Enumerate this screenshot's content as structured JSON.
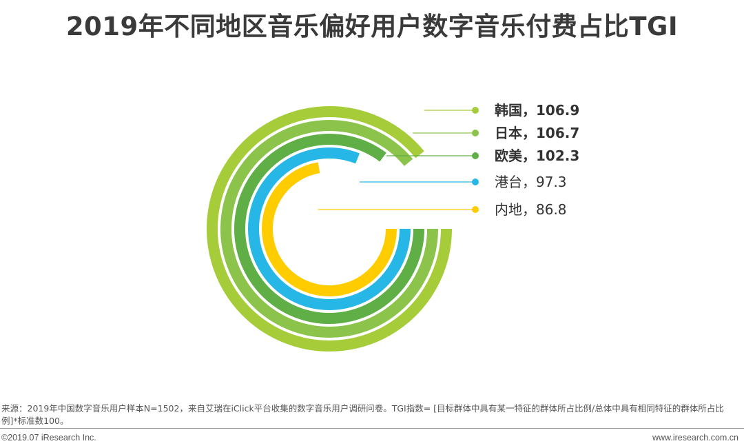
{
  "chart_data": {
    "type": "radial-bar",
    "title": "2019年不同地区音乐偏好用户数字音乐付费占比TGI",
    "series": [
      {
        "name": "韩国",
        "value": 106.9,
        "label": "韩国，106.9",
        "color": "#a6cd39",
        "bold": true
      },
      {
        "name": "日本",
        "value": 106.7,
        "label": "日本，106.7",
        "color": "#8cc34a",
        "bold": true
      },
      {
        "name": "欧美",
        "value": 102.3,
        "label": "欧美，102.3",
        "color": "#5faf46",
        "bold": true
      },
      {
        "name": "港台",
        "value": 97.3,
        "label": "港台，97.3",
        "color": "#27b7e6",
        "bold": false
      },
      {
        "name": "内地",
        "value": 86.8,
        "label": "内地，86.8",
        "color": "#ffcc00",
        "bold": false
      }
    ]
  },
  "footer": {
    "source": "来源：2019年中国数字音乐用户样本N=1502，来自艾瑞在iClick平台收集的数字音乐用户调研问卷。TGI指数= [目标群体中具有某一特征的群体所占比例/总体中具有相同特征的群体所占比例]*标准数100。",
    "copyright": "©2019.07 iResearch Inc.",
    "website": "www.iresearch.com.cn"
  }
}
